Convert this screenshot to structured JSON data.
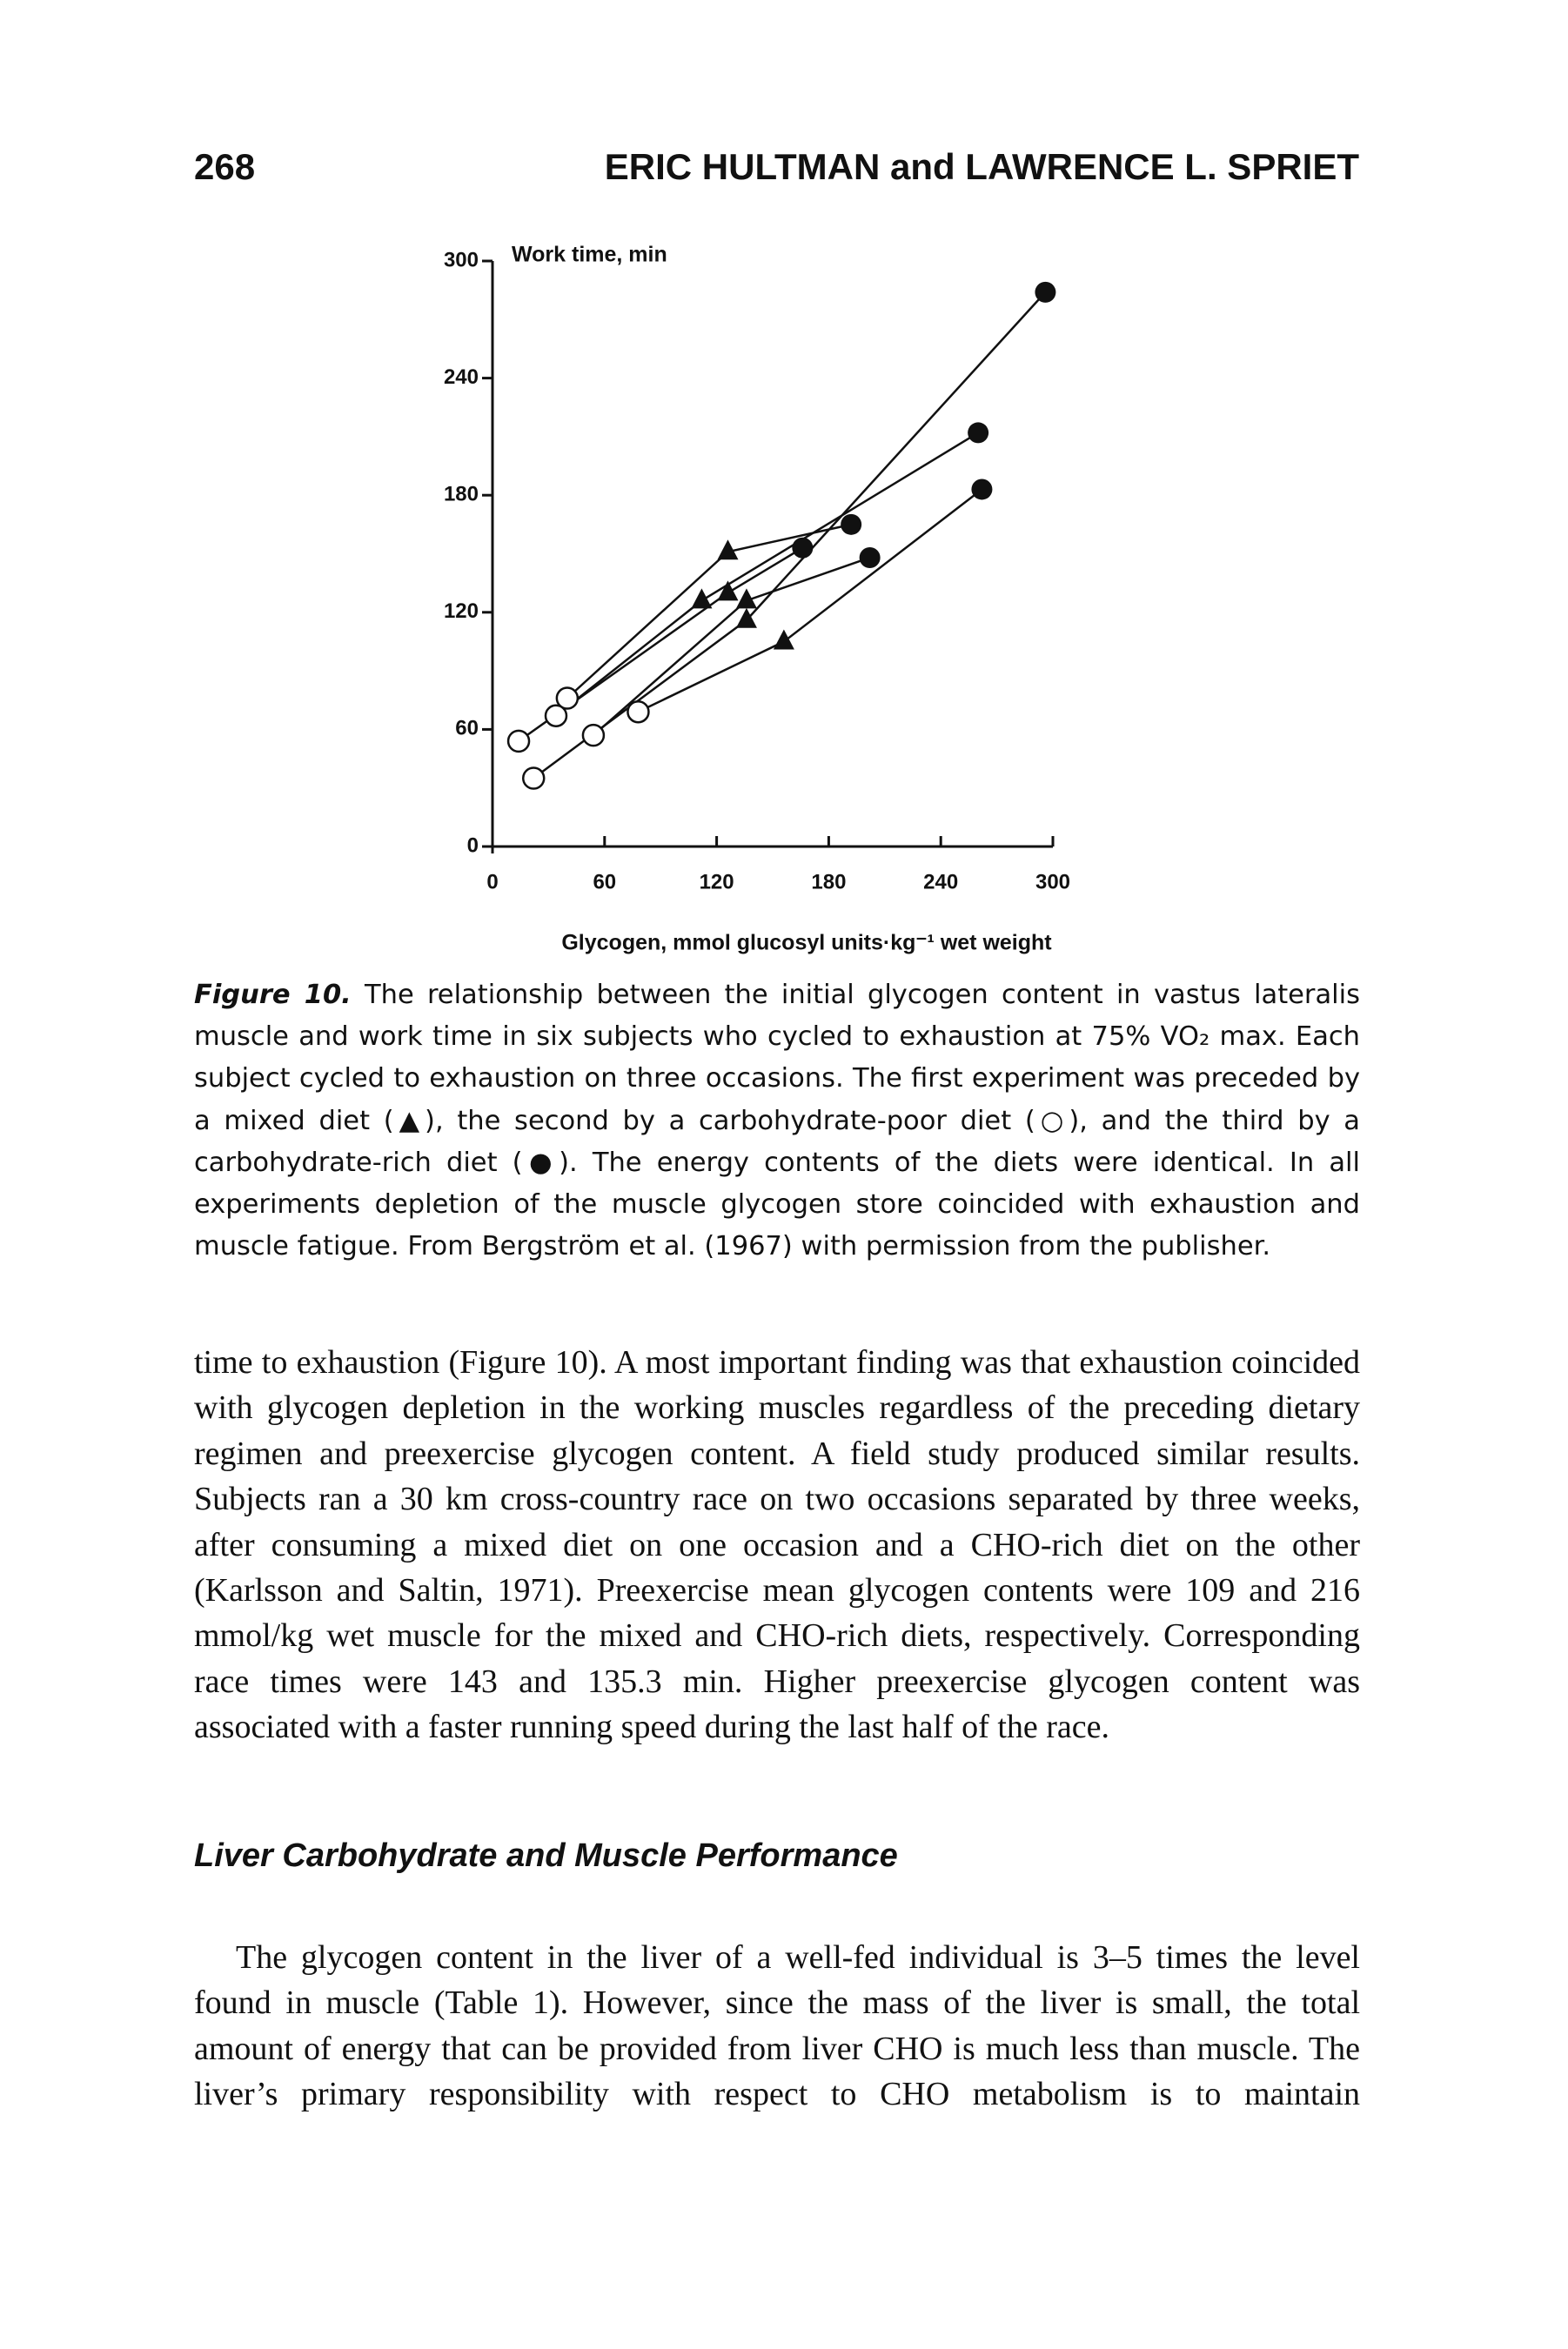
{
  "header": {
    "page_number": "268",
    "running_head": "ERIC HULTMAN and LAWRENCE L. SPRIET"
  },
  "chart_data": {
    "type": "scatter",
    "y_label": "Work time, min",
    "x_label": "Glycogen, mmol glucosyl units·kg⁻¹ wet weight",
    "xlim": [
      0,
      300
    ],
    "xticks": [
      0,
      60,
      120,
      180,
      240,
      300
    ],
    "ylim": [
      0,
      300
    ],
    "yticks": [
      0,
      60,
      120,
      180,
      240,
      300
    ],
    "connect_points": true,
    "series": [
      {
        "marker": "open-circle",
        "color": "#111111",
        "x": [
          40,
          34,
          14,
          54,
          78,
          22
        ],
        "y": [
          76,
          67,
          54,
          57,
          69,
          35
        ]
      },
      {
        "marker": "triangle",
        "color": "#111111",
        "x": [
          126,
          112,
          126,
          136,
          156,
          136
        ],
        "y": [
          151,
          126,
          130,
          126,
          105,
          116
        ]
      },
      {
        "marker": "filled-circle",
        "color": "#111111",
        "x": [
          192,
          260,
          166,
          202,
          262,
          296
        ],
        "y": [
          165,
          212,
          153,
          148,
          183,
          284
        ]
      }
    ]
  },
  "caption": {
    "label": "Figure 10.",
    "text": "The relationship between the initial glycogen content in vastus lateralis muscle and work time in six subjects who cycled to exhaustion at 75% VO₂ max. Each subject cycled to exhaustion on three occasions. The first experiment was preceded by a mixed diet (▲), the second by a carbohydrate-poor diet (○), and the third by a carbohydrate-rich diet (●). The energy contents of the diets were identical. In all experiments depletion of the muscle glycogen store coincided with exhaustion and muscle fatigue. From Bergström et al. (1967) with permission from the publisher."
  },
  "body": {
    "paragraphs": [
      "time to exhaustion (Figure 10). A most important finding was that exhaustion coincided with glycogen depletion in the working muscles regardless of the preceding dietary regimen and preexercise glycogen content. A field study produced similar results. Subjects ran a 30 km cross-country race on two occasions separated by three weeks, after consuming a mixed diet on one occasion and a CHO-rich diet on the other (Karlsson and Saltin, 1971). Preexercise mean glycogen contents were 109 and 216 mmol/kg wet muscle for the mixed and CHO-rich diets, respectively. Corresponding race times were 143 and 135.3 min. Higher preexercise glycogen content was associated with a faster running speed during the last half of the race."
    ],
    "heading": "Liver Carbohydrate and Muscle Performance",
    "paragraphs_2": [
      "The glycogen content in the liver of a well-fed individual is 3–5 times the level found in muscle (Table 1). However, since the mass of the liver is small, the total amount of energy that can be provided from liver CHO is much less than muscle. The liver’s primary responsibility with respect to CHO metabolism is to maintain"
    ]
  }
}
